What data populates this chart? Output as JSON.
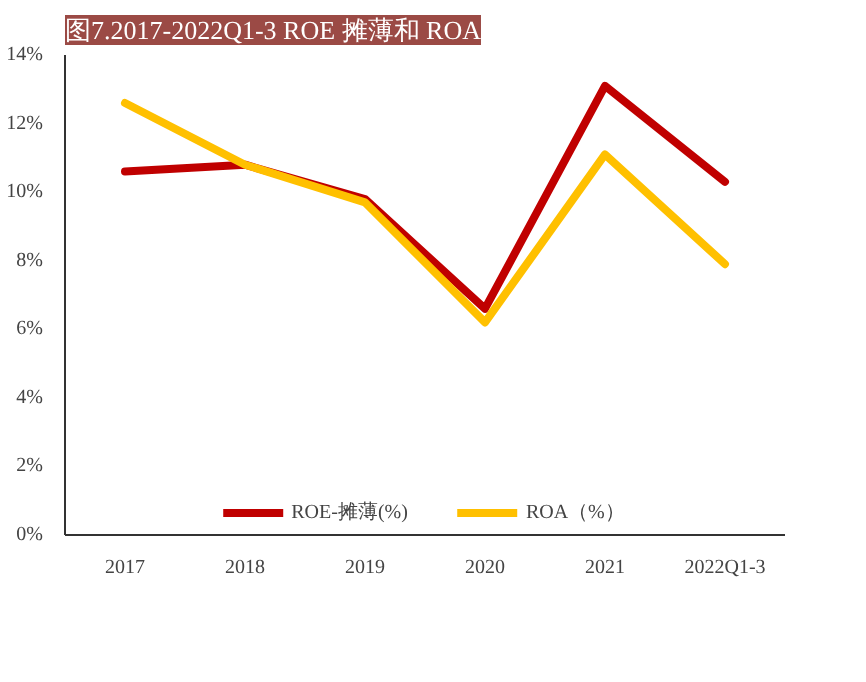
{
  "chart_data": {
    "type": "line",
    "title": "图7.2017-2022Q1-3 ROE 摊薄和 ROA",
    "categories": [
      "2017",
      "2018",
      "2019",
      "2020",
      "2021",
      "2022Q1-3"
    ],
    "series": [
      {
        "name": "ROE-摊薄(%)",
        "color": "#c00000",
        "values": [
          10.6,
          10.8,
          9.8,
          6.6,
          13.1,
          10.3
        ]
      },
      {
        "name": "ROA（%）",
        "color": "#ffc000",
        "values": [
          12.6,
          10.8,
          9.7,
          6.2,
          11.1,
          7.9
        ]
      }
    ],
    "ylim": [
      0,
      14
    ],
    "yticks": [
      {
        "value": 0,
        "label": "0%"
      },
      {
        "value": 2,
        "label": "2%"
      },
      {
        "value": 4,
        "label": "4%"
      },
      {
        "value": 6,
        "label": "6%"
      },
      {
        "value": 8,
        "label": "8%"
      },
      {
        "value": 10,
        "label": "10%"
      },
      {
        "value": 12,
        "label": "12%"
      },
      {
        "value": 14,
        "label": "14%"
      }
    ],
    "grid": false,
    "legend": "bottom",
    "marker": "none",
    "line_style": "solid"
  }
}
